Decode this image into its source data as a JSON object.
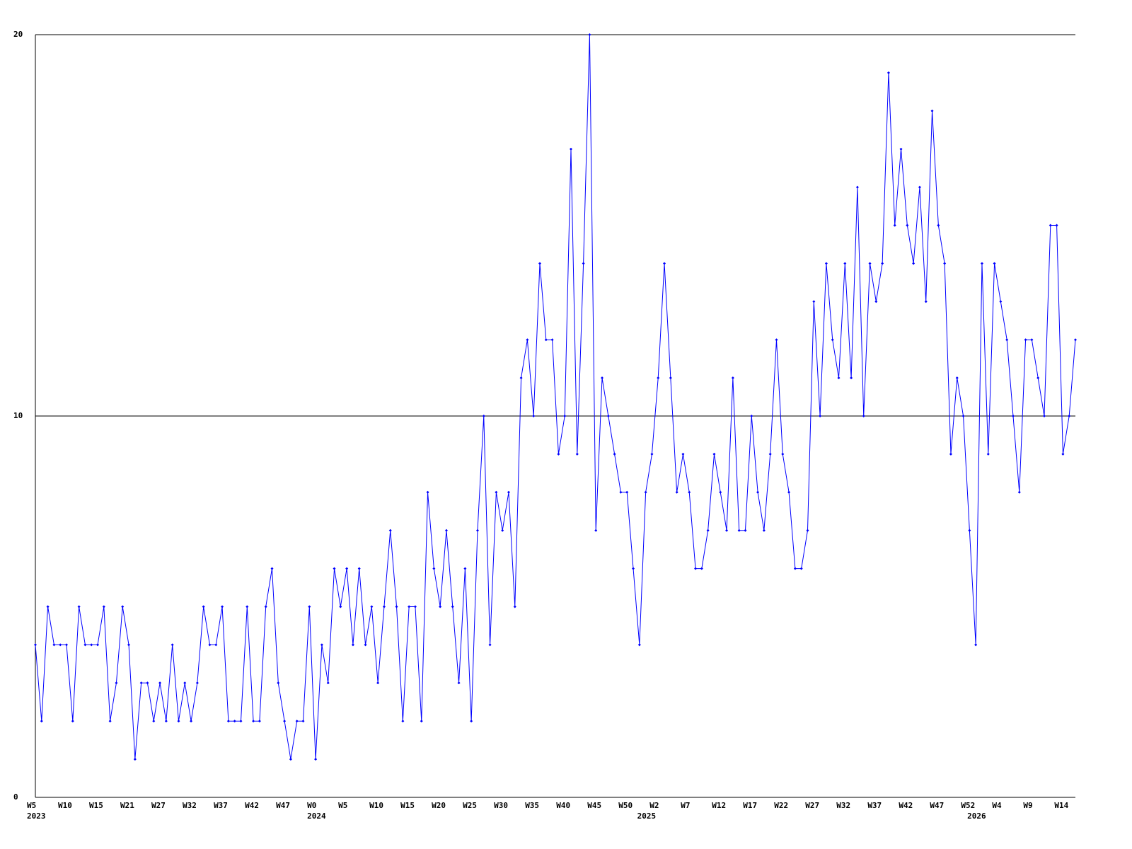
{
  "chart_data": {
    "type": "line",
    "categories": [
      "W5",
      null,
      null,
      null,
      null,
      "W10",
      null,
      null,
      null,
      null,
      "W15",
      null,
      null,
      null,
      null,
      "W21",
      null,
      null,
      null,
      null,
      "W27",
      null,
      null,
      null,
      null,
      "W32",
      null,
      null,
      null,
      null,
      "W37",
      null,
      null,
      null,
      null,
      "W42",
      null,
      null,
      null,
      null,
      "W47",
      null,
      null,
      null,
      null,
      "W0",
      null,
      null,
      null,
      null,
      "W5",
      null,
      null,
      null,
      null,
      "W10",
      null,
      null,
      null,
      null,
      "W15",
      null,
      null,
      null,
      null,
      "W20",
      null,
      null,
      null,
      null,
      "W25",
      null,
      null,
      null,
      null,
      "W30",
      null,
      null,
      null,
      null,
      "W35",
      null,
      null,
      null,
      null,
      "W40",
      null,
      null,
      null,
      null,
      "W45",
      null,
      null,
      null,
      null,
      "W50",
      null,
      null,
      null,
      null,
      "W2",
      null,
      null,
      null,
      null,
      "W7",
      null,
      null,
      null,
      null,
      "W12",
      null,
      null,
      null,
      null,
      "W17",
      null,
      null,
      null,
      null,
      "W22",
      null,
      null,
      null,
      null,
      "W27",
      null,
      null,
      null,
      null,
      "W32",
      null,
      null,
      null,
      null,
      "W37",
      null,
      null,
      null,
      null,
      "W42",
      null,
      null,
      null,
      null,
      "W47",
      null,
      null,
      null,
      null,
      "W52",
      null,
      null,
      null,
      null,
      "W4",
      null,
      null,
      null,
      null,
      "W9",
      null,
      null,
      null,
      null,
      "W14",
      null,
      null
    ],
    "category_years": [
      "2023",
      null,
      null,
      null,
      null,
      null,
      null,
      null,
      null,
      null,
      null,
      null,
      null,
      null,
      null,
      null,
      null,
      null,
      null,
      null,
      null,
      null,
      null,
      null,
      null,
      null,
      null,
      null,
      null,
      null,
      null,
      null,
      null,
      null,
      null,
      null,
      null,
      null,
      null,
      null,
      null,
      null,
      null,
      null,
      null,
      "2024",
      null,
      null,
      null,
      null,
      null,
      null,
      null,
      null,
      null,
      null,
      null,
      null,
      null,
      null,
      null,
      null,
      null,
      null,
      null,
      null,
      null,
      null,
      null,
      null,
      null,
      null,
      null,
      null,
      null,
      null,
      null,
      null,
      null,
      null,
      null,
      null,
      null,
      null,
      null,
      null,
      null,
      null,
      null,
      null,
      null,
      null,
      null,
      null,
      null,
      null,
      null,
      null,
      "2025",
      null,
      null,
      null,
      null,
      null,
      null,
      null,
      null,
      null,
      null,
      null,
      null,
      null,
      null,
      null,
      null,
      null,
      null,
      null,
      null,
      null,
      null,
      null,
      null,
      null,
      null,
      null,
      null,
      null,
      null,
      null,
      null,
      null,
      null,
      null,
      null,
      null,
      null,
      null,
      null,
      null,
      null,
      null,
      null,
      null,
      null,
      null,
      null,
      null,
      null,
      null,
      null,
      "2026",
      null,
      null,
      null,
      null,
      null,
      null,
      null,
      null,
      null,
      null,
      null,
      null,
      null,
      null,
      null,
      null
    ],
    "series": [
      {
        "color": "#0000ff",
        "values": [
          4,
          2,
          5,
          4,
          4,
          4,
          2,
          5,
          4,
          4,
          4,
          5,
          2,
          3,
          5,
          4,
          1,
          3,
          3,
          2,
          3,
          2,
          4,
          2,
          3,
          2,
          3,
          5,
          4,
          4,
          5,
          2,
          2,
          2,
          5,
          2,
          2,
          5,
          6,
          3,
          2,
          1,
          2,
          2,
          5,
          1,
          4,
          3,
          6,
          5,
          6,
          4,
          6,
          4,
          5,
          3,
          5,
          7,
          5,
          2,
          5,
          5,
          2,
          8,
          6,
          5,
          7,
          5,
          3,
          6,
          2,
          7,
          10,
          4,
          8,
          7,
          8,
          5,
          11,
          12,
          10,
          14,
          12,
          12,
          9,
          10,
          17,
          9,
          14,
          20,
          7,
          11,
          10,
          9,
          8,
          8,
          6,
          4,
          8,
          9,
          11,
          14,
          11,
          8,
          9,
          8,
          6,
          6,
          7,
          9,
          8,
          7,
          11,
          7,
          7,
          10,
          8,
          7,
          9,
          12,
          9,
          8,
          6,
          6,
          7,
          13,
          10,
          14,
          12,
          11,
          14,
          11,
          16,
          10,
          14,
          13,
          14,
          19,
          15,
          17,
          15,
          14,
          16,
          13,
          18,
          15,
          14,
          9,
          11,
          10,
          7,
          4,
          14,
          9,
          14,
          13,
          12,
          10,
          8,
          12,
          12,
          11,
          10,
          15,
          15,
          9,
          10,
          12
        ]
      }
    ],
    "ylim": [
      0,
      20
    ],
    "yticks": [
      0,
      10,
      20
    ],
    "grid": true
  }
}
